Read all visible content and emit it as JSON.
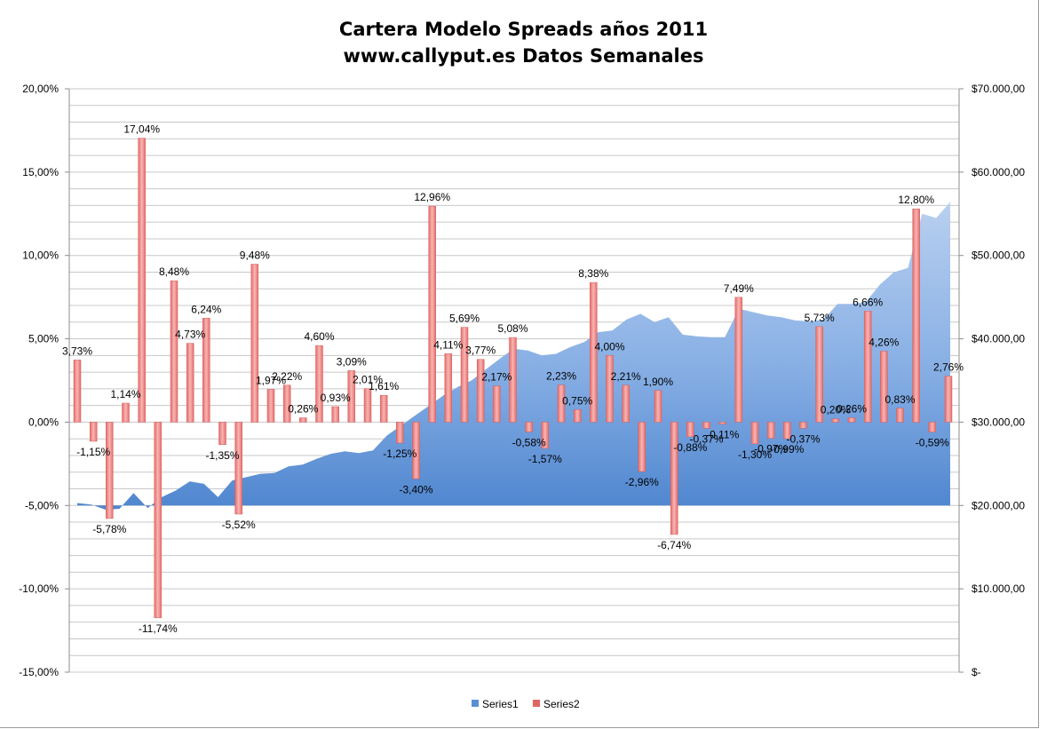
{
  "chart_data": {
    "type": "bar",
    "title": "Cartera Modelo Spreads años 2011",
    "subtitle": "www.callyput.es Datos Semanales",
    "y_left": {
      "ylim": [
        -0.15,
        0.2
      ],
      "ticks": [
        "-15,00%",
        "-10,00%",
        "-5,00%",
        "0,00%",
        "5,00%",
        "10,00%",
        "15,00%",
        "20,00%"
      ]
    },
    "y_right": {
      "ylim": [
        0,
        70000
      ],
      "ticks": [
        "$-",
        "$10.000,00",
        "$20.000,00",
        "$30.000,00",
        "$40.000,00",
        "$50.000,00",
        "$60.000,00",
        "$70.000,00"
      ]
    },
    "grid": true,
    "legend_position": "bottom",
    "series": [
      {
        "name": "Series1",
        "kind": "area",
        "axis": "right",
        "color": "#5b8fd4",
        "values": [
          20300,
          20100,
          19500,
          19600,
          21500,
          19700,
          21000,
          21800,
          22900,
          22600,
          21000,
          23000,
          23400,
          23800,
          23900,
          24700,
          24900,
          25600,
          26200,
          26500,
          26300,
          26600,
          28400,
          29600,
          30800,
          32000,
          33200,
          34200,
          35000,
          36300,
          37600,
          38800,
          38600,
          38000,
          38200,
          39000,
          39600,
          40800,
          41000,
          42300,
          43000,
          42000,
          42600,
          40500,
          40300,
          40200,
          40200,
          43600,
          43200,
          42800,
          42600,
          42200,
          42100,
          42300,
          44200,
          44200,
          44400,
          46500,
          48000,
          48500,
          55000,
          54500,
          56400
        ]
      },
      {
        "name": "Series2",
        "kind": "bar",
        "axis": "left",
        "color": "#e06666",
        "values": [
          0.0373,
          -0.0115,
          -0.0578,
          0.0114,
          0.1704,
          -0.1174,
          0.0848,
          0.0473,
          0.0624,
          -0.0135,
          -0.0552,
          0.0948,
          0.0197,
          0.0222,
          0.0026,
          0.046,
          0.0093,
          0.0309,
          0.0201,
          0.0161,
          -0.0125,
          -0.034,
          0.1296,
          0.0411,
          0.0569,
          0.0377,
          0.0217,
          0.0508,
          -0.0058,
          -0.0157,
          0.0223,
          0.0075,
          0.0838,
          0.04,
          0.0221,
          -0.0296,
          0.019,
          -0.0674,
          -0.0088,
          -0.0037,
          -0.0011,
          0.0749,
          -0.013,
          -0.0097,
          -0.0099,
          -0.0037,
          0.0573,
          0.002,
          0.0026,
          0.0666,
          0.0426,
          0.0083,
          0.128,
          -0.0059,
          0.0276
        ],
        "labels": [
          "3,73%",
          "-1,15%",
          "-5,78%",
          "1,14%",
          "17,04%",
          "-11,74%",
          "8,48%",
          "4,73%",
          "6,24%",
          "-1,35%",
          "-5,52%",
          "9,48%",
          "1,97%",
          "2,22%",
          "0,26%",
          "4,60%",
          "0,93%",
          "3,09%",
          "2,01%",
          "1,61%",
          "-1,25%",
          "-3,40%",
          "12,96%",
          "4,11%",
          "5,69%",
          "3,77%",
          "2,17%",
          "5,08%",
          "-0,58%",
          "-1,57%",
          "2,23%",
          "0,75%",
          "8,38%",
          "4,00%",
          "2,21%",
          "-2,96%",
          "1,90%",
          "-6,74%",
          "-0,88%",
          "-0,37%",
          "-0,11%",
          "7,49%",
          "-1,30%",
          "-0,97%",
          "-0,99%",
          "-0,37%",
          "5,73%",
          "0,20%",
          "0,26%",
          "6,66%",
          "4,26%",
          "0,83%",
          "12,80%",
          "-0,59%",
          "2,76%"
        ]
      }
    ]
  }
}
